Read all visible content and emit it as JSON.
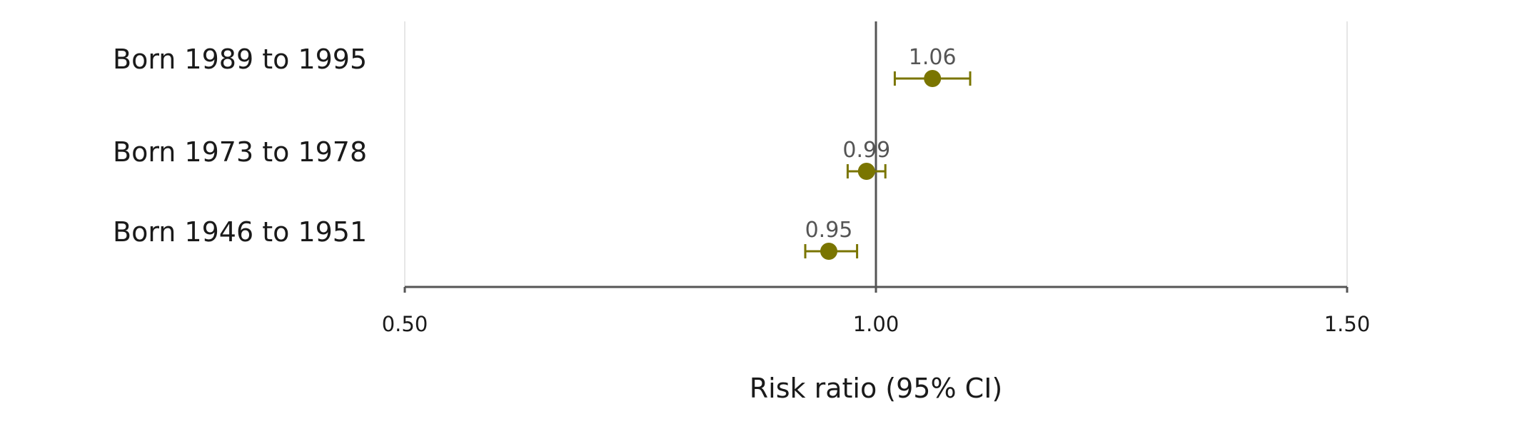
{
  "chart_data": {
    "type": "forest",
    "title": "",
    "xlabel": "Risk ratio (95% CI)",
    "ylabel": "",
    "xlim": [
      0.5,
      1.5
    ],
    "x_ticks": [
      0.5,
      1.0,
      1.5
    ],
    "x_tick_labels": [
      "0.50",
      "1.00",
      "1.50"
    ],
    "reference_line": 1.0,
    "grid": "vertical-at-ticks",
    "color": "#7a7500",
    "rows": [
      {
        "label": "Born 1989 to 1995",
        "estimate": 1.06,
        "lower": 1.02,
        "upper": 1.1,
        "value_label": "1.06"
      },
      {
        "label": "Born 1973 to 1978",
        "estimate": 0.99,
        "lower": 0.97,
        "upper": 1.01,
        "value_label": "0.99"
      },
      {
        "label": "Born 1946 to 1951",
        "estimate": 0.95,
        "lower": 0.925,
        "upper": 0.98,
        "value_label": "0.95"
      }
    ]
  }
}
